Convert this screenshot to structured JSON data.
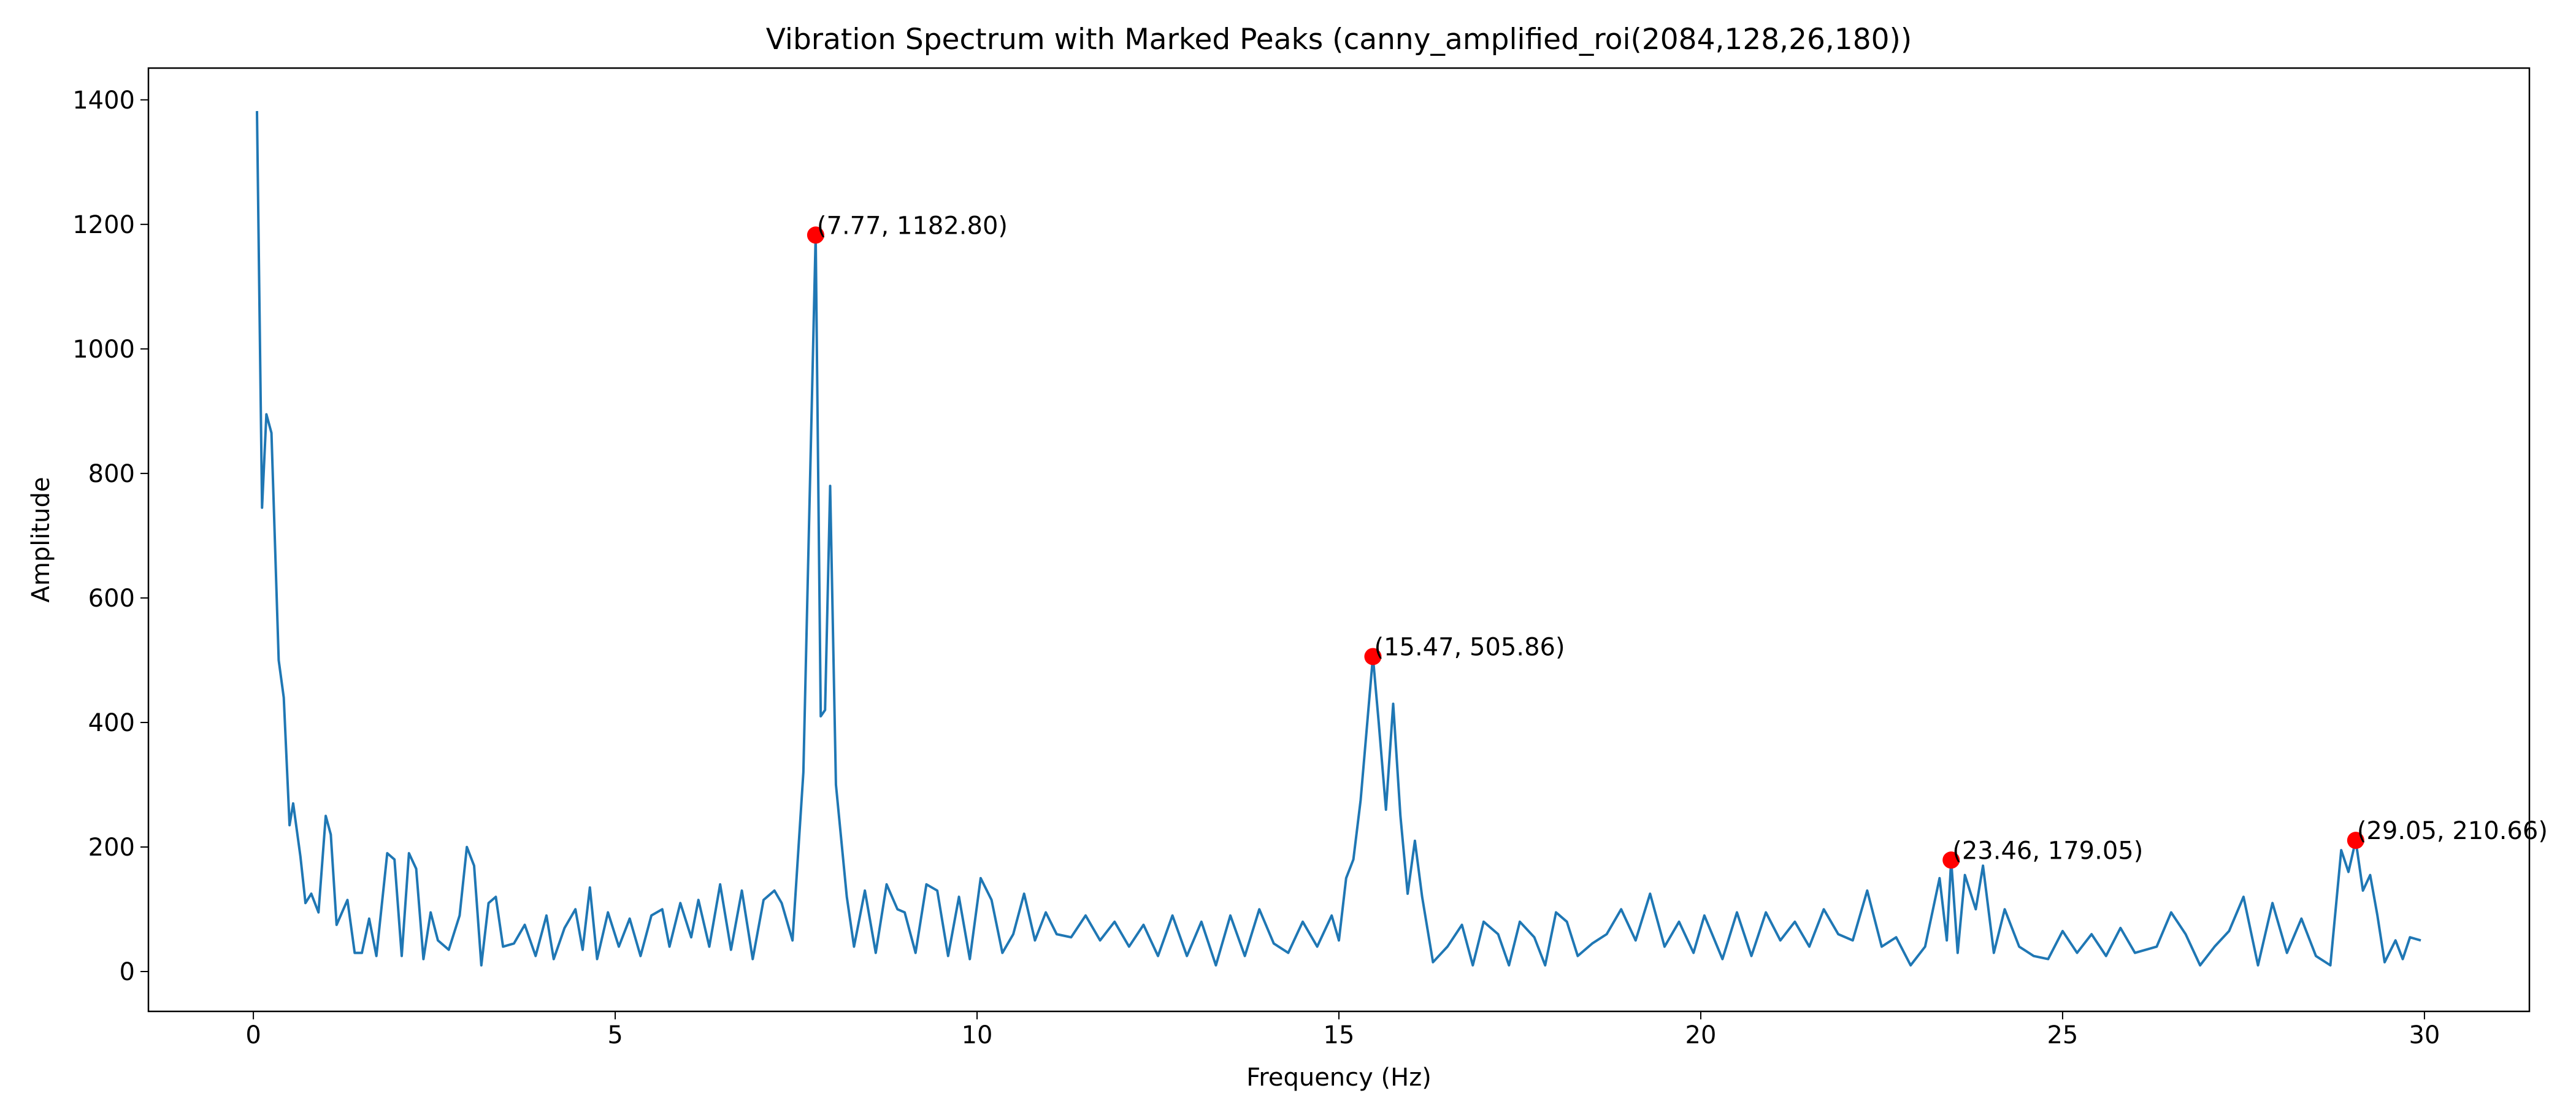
{
  "chart_data": {
    "type": "line",
    "title": "Vibration Spectrum with Marked Peaks (canny_amplified_roi(2084,128,26,180))",
    "x_label": "Frequency (Hz)",
    "y_label": "Amplitude",
    "x": [
      0.05,
      0.12,
      0.18,
      0.25,
      0.35,
      0.42,
      0.5,
      0.55,
      0.65,
      0.72,
      0.8,
      0.9,
      1.0,
      1.07,
      1.15,
      1.3,
      1.4,
      1.5,
      1.6,
      1.7,
      1.85,
      1.95,
      2.05,
      2.15,
      2.25,
      2.35,
      2.45,
      2.55,
      2.7,
      2.85,
      2.95,
      3.05,
      3.15,
      3.25,
      3.35,
      3.45,
      3.6,
      3.75,
      3.9,
      4.05,
      4.15,
      4.3,
      4.45,
      4.55,
      4.65,
      4.75,
      4.9,
      5.05,
      5.2,
      5.35,
      5.5,
      5.65,
      5.75,
      5.9,
      6.05,
      6.15,
      6.3,
      6.45,
      6.6,
      6.75,
      6.9,
      7.05,
      7.2,
      7.3,
      7.45,
      7.6,
      7.77,
      7.84,
      7.9,
      7.97,
      8.05,
      8.2,
      8.3,
      8.45,
      8.6,
      8.75,
      8.9,
      9.0,
      9.15,
      9.3,
      9.45,
      9.6,
      9.75,
      9.9,
      10.05,
      10.2,
      10.35,
      10.5,
      10.65,
      10.8,
      10.95,
      11.1,
      11.3,
      11.5,
      11.7,
      11.9,
      12.1,
      12.3,
      12.5,
      12.7,
      12.9,
      13.1,
      13.3,
      13.5,
      13.7,
      13.9,
      14.1,
      14.3,
      14.5,
      14.7,
      14.9,
      15.0,
      15.1,
      15.2,
      15.3,
      15.47,
      15.55,
      15.65,
      15.75,
      15.85,
      15.95,
      16.05,
      16.15,
      16.3,
      16.5,
      16.7,
      16.85,
      17.0,
      17.2,
      17.35,
      17.5,
      17.7,
      17.85,
      18.0,
      18.15,
      18.3,
      18.5,
      18.7,
      18.9,
      19.1,
      19.3,
      19.5,
      19.7,
      19.9,
      20.05,
      20.3,
      20.5,
      20.7,
      20.9,
      21.1,
      21.3,
      21.5,
      21.7,
      21.9,
      22.1,
      22.3,
      22.5,
      22.7,
      22.9,
      23.1,
      23.3,
      23.4,
      23.46,
      23.55,
      23.65,
      23.8,
      23.9,
      24.05,
      24.2,
      24.4,
      24.6,
      24.8,
      25.0,
      25.2,
      25.4,
      25.6,
      25.8,
      26.0,
      26.3,
      26.5,
      26.7,
      26.9,
      27.1,
      27.3,
      27.5,
      27.7,
      27.9,
      28.1,
      28.3,
      28.5,
      28.7,
      28.85,
      28.95,
      29.05,
      29.15,
      29.25,
      29.35,
      29.45,
      29.6,
      29.7,
      29.8,
      29.95
    ],
    "series": [
      {
        "color": "#1f77b4",
        "values": [
          1382,
          745,
          895,
          865,
          500,
          440,
          235,
          270,
          185,
          110,
          125,
          95,
          250,
          220,
          75,
          115,
          30,
          30,
          85,
          25,
          190,
          180,
          25,
          190,
          165,
          20,
          95,
          50,
          35,
          90,
          200,
          170,
          10,
          110,
          120,
          40,
          45,
          75,
          25,
          90,
          20,
          70,
          100,
          35,
          135,
          20,
          95,
          40,
          85,
          25,
          90,
          100,
          40,
          110,
          55,
          115,
          40,
          140,
          35,
          130,
          20,
          115,
          130,
          110,
          50,
          320,
          1182.8,
          410,
          420,
          780,
          300,
          120,
          40,
          130,
          30,
          140,
          100,
          95,
          30,
          140,
          130,
          25,
          120,
          20,
          150,
          115,
          30,
          60,
          125,
          50,
          95,
          60,
          55,
          90,
          50,
          80,
          40,
          75,
          25,
          90,
          25,
          80,
          10,
          90,
          25,
          100,
          45,
          30,
          80,
          40,
          90,
          50,
          150,
          180,
          275,
          505.86,
          400,
          260,
          430,
          250,
          125,
          210,
          120,
          15,
          40,
          75,
          10,
          80,
          60,
          10,
          80,
          55,
          10,
          95,
          80,
          25,
          45,
          60,
          100,
          50,
          125,
          40,
          80,
          30,
          90,
          20,
          95,
          25,
          95,
          50,
          80,
          40,
          100,
          60,
          50,
          130,
          40,
          55,
          10,
          40,
          150,
          50,
          179.05,
          30,
          155,
          100,
          170,
          30,
          100,
          40,
          25,
          20,
          65,
          30,
          60,
          25,
          70,
          30,
          40,
          95,
          60,
          10,
          40,
          65,
          120,
          10,
          110,
          30,
          85,
          25,
          10,
          195,
          160,
          210.66,
          130,
          155,
          90,
          15,
          50,
          20,
          55,
          50
        ]
      }
    ],
    "peaks": {
      "color": "#ff0000",
      "x": [
        7.77,
        15.47,
        23.46,
        29.05
      ],
      "values": [
        1182.8,
        505.86,
        179.05,
        210.66
      ],
      "labels": [
        "(7.77, 1182.80)",
        "(15.47, 505.86)",
        "(23.46, 179.05)",
        "(29.05, 210.66)"
      ]
    },
    "xlim": [
      -1.45,
      31.45
    ],
    "ylim": [
      -64,
      1451
    ],
    "xticks": [
      0,
      5,
      10,
      15,
      20,
      25,
      30
    ],
    "yticks": [
      0,
      200,
      400,
      600,
      800,
      1000,
      1200,
      1400
    ]
  }
}
